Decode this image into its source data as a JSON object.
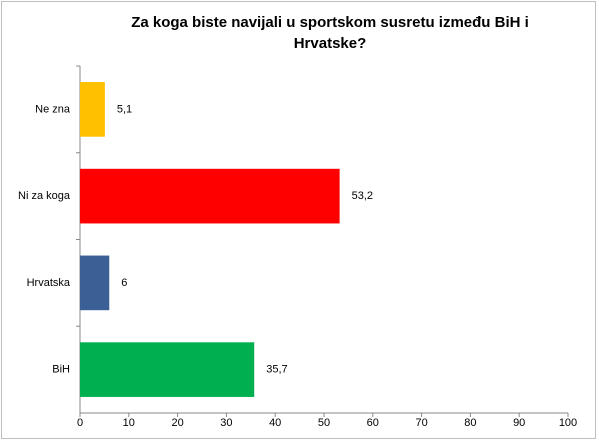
{
  "chart_data": {
    "type": "hbar",
    "title": "Za koga biste navijali u sportskom susretu između BiH i Hrvatske?",
    "categories": [
      "Ne zna",
      "Ni za koga",
      "Hrvatska",
      "BiH"
    ],
    "values": [
      5.1,
      53.2,
      6,
      35.7
    ],
    "value_labels": [
      "5,1",
      "53,2",
      "6",
      "35,7"
    ],
    "colors": [
      "#ffc000",
      "#ff0000",
      "#3a6095",
      "#00b050"
    ],
    "xlim": [
      0,
      100
    ],
    "xticks": [
      0,
      10,
      20,
      30,
      40,
      50,
      60,
      70,
      80,
      90,
      100
    ],
    "grid": false
  }
}
